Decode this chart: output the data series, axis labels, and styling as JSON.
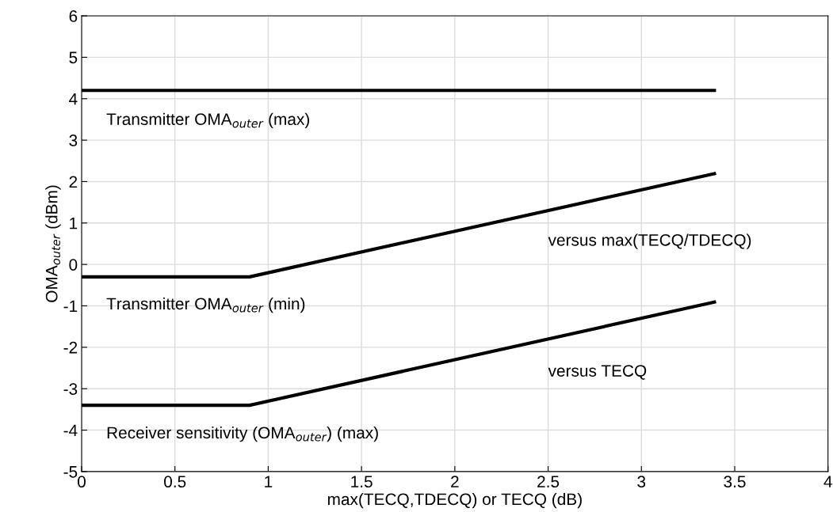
{
  "chart_data": {
    "type": "line",
    "xlabel": "max(TECQ,TDECQ) or TECQ (dB)",
    "ylabel": "OMA$_{outer}$ (dBm)",
    "series": [
      {
        "color": "#000000",
        "x": [
          0,
          3.4
        ],
        "values": [
          4.2,
          4.2
        ]
      },
      {
        "color": "#000000",
        "x": [
          0,
          0.9,
          3.4
        ],
        "values": [
          -0.3,
          -0.3,
          2.2
        ]
      },
      {
        "color": "#000000",
        "x": [
          0,
          0.9,
          3.4
        ],
        "values": [
          -3.4,
          -3.4,
          -0.9
        ]
      }
    ],
    "xlim": [
      0,
      4
    ],
    "xticks": [
      0,
      0.5,
      1,
      1.5,
      2,
      2.5,
      3,
      3.5,
      4
    ],
    "ylim": [
      -5,
      6
    ],
    "yticks": [
      -5,
      -4,
      -3,
      -2,
      -1,
      0,
      1,
      2,
      3,
      4,
      5,
      6
    ],
    "grid": true,
    "marker": "none",
    "line_style": "solid",
    "annotations": [
      "Transmitter OMA$_{outer}$ (max)",
      "versus max(TECQ/TDECQ)",
      "Transmitter OMA$_{outer}$ (min)",
      "versus TECQ",
      "Receiver sensitivity (OMA$_{outer}$) (max)"
    ]
  }
}
